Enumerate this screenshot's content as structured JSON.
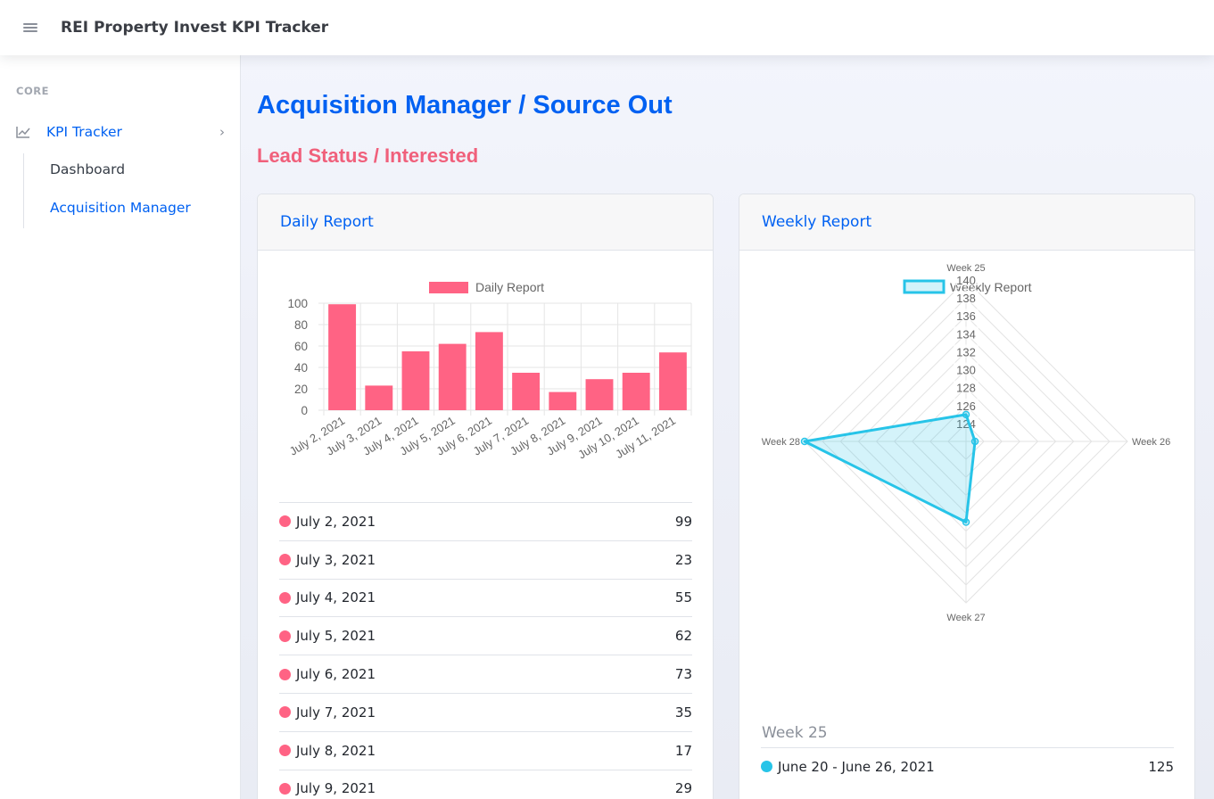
{
  "app": {
    "title": "REI Property Invest KPI Tracker"
  },
  "sidebar": {
    "heading": "CORE",
    "item": {
      "label": "KPI Tracker"
    },
    "subitems": [
      {
        "label": "Dashboard"
      },
      {
        "label": "Acquisition Manager"
      }
    ]
  },
  "page": {
    "title": "Acquisition Manager / Source Out",
    "subtitle": "Lead Status / Interested"
  },
  "daily": {
    "header": "Daily Report",
    "rows": [
      {
        "date": "July 2, 2021",
        "value": "99"
      },
      {
        "date": "July 3, 2021",
        "value": "23"
      },
      {
        "date": "July 4, 2021",
        "value": "55"
      },
      {
        "date": "July 5, 2021",
        "value": "62"
      },
      {
        "date": "July 6, 2021",
        "value": "73"
      },
      {
        "date": "July 7, 2021",
        "value": "35"
      },
      {
        "date": "July 8, 2021",
        "value": "17"
      },
      {
        "date": "July 9, 2021",
        "value": "29"
      }
    ]
  },
  "weekly": {
    "header": "Weekly Report",
    "section_label": "Week 25",
    "rows": [
      {
        "range": "June 20 - June 26, 2021",
        "value": "125"
      }
    ]
  },
  "colors": {
    "accent": "#0061f2",
    "pink": "#ff6384",
    "cyan": "#27c4e8"
  },
  "chart_data": [
    {
      "type": "bar",
      "legend": [
        "Daily Report"
      ],
      "categories": [
        "July 2, 2021",
        "July 3, 2021",
        "July 4, 2021",
        "July 5, 2021",
        "July 6, 2021",
        "July 7, 2021",
        "July 8, 2021",
        "July 9, 2021",
        "July 10, 2021",
        "July 11, 2021"
      ],
      "series": [
        {
          "name": "Daily Report",
          "values": [
            99,
            23,
            55,
            62,
            73,
            35,
            17,
            29,
            35,
            54
          ]
        }
      ],
      "ylim": [
        0,
        100
      ],
      "yticks": [
        0,
        20,
        40,
        60,
        80,
        100
      ],
      "grid": true,
      "legend_position": "top"
    },
    {
      "type": "radar",
      "legend": [
        "Weekly Report"
      ],
      "categories": [
        "Week 25",
        "Week 26",
        "Week 27",
        "Week 28"
      ],
      "series": [
        {
          "name": "Weekly Report",
          "values": [
            125,
            123,
            131,
            140
          ]
        }
      ],
      "rlim": [
        122,
        140
      ],
      "rticks": [
        124,
        126,
        128,
        130,
        132,
        134,
        136,
        138,
        140
      ],
      "grid": true,
      "legend_position": "top"
    }
  ]
}
